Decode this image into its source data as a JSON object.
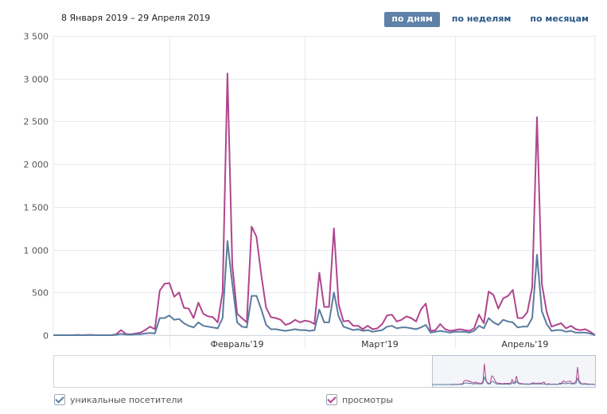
{
  "header": {
    "date_range": "8 Января 2019 – 29 Апреля 2019",
    "periods": [
      {
        "label": "по дням",
        "active": true
      },
      {
        "label": "по неделям",
        "active": false
      },
      {
        "label": "по месяцам",
        "active": false
      }
    ]
  },
  "legend": {
    "unique_label": "уникальные посетители",
    "views_label": "просмотры"
  },
  "colors": {
    "unique": "#5a7b9e",
    "views": "#b0458f",
    "grid": "#e5e9ef"
  },
  "chart_data": {
    "type": "line",
    "x_start": "2019-01-08",
    "x_end": "2019-04-29",
    "ylim": [
      0,
      3500
    ],
    "yticks": [
      {
        "value": 0,
        "label": "0"
      },
      {
        "value": 500,
        "label": "500"
      },
      {
        "value": 1000,
        "label": "1 000"
      },
      {
        "value": 1500,
        "label": "1 500"
      },
      {
        "value": 2000,
        "label": "2 000"
      },
      {
        "value": 2500,
        "label": "2 500"
      },
      {
        "value": 3000,
        "label": "3 000"
      },
      {
        "value": 3500,
        "label": "3 500"
      }
    ],
    "months": [
      {
        "label": "Февраль'19",
        "start_day": 24
      },
      {
        "label": "Март'19",
        "start_day": 52
      },
      {
        "label": "Апрель'19",
        "start_day": 83
      }
    ],
    "series": [
      {
        "name": "просмотры",
        "values": [
          0,
          0,
          0,
          0,
          0,
          2,
          0,
          2,
          3,
          0,
          0,
          0,
          0,
          10,
          60,
          15,
          10,
          20,
          30,
          60,
          100,
          70,
          520,
          600,
          610,
          450,
          500,
          320,
          310,
          200,
          380,
          250,
          220,
          210,
          150,
          500,
          3060,
          820,
          250,
          200,
          150,
          1270,
          1150,
          700,
          320,
          210,
          200,
          180,
          120,
          140,
          180,
          150,
          170,
          160,
          130,
          730,
          330,
          330,
          1250,
          360,
          160,
          170,
          110,
          110,
          70,
          110,
          70,
          80,
          130,
          230,
          240,
          160,
          180,
          220,
          200,
          160,
          300,
          370,
          50,
          60,
          130,
          70,
          50,
          60,
          70,
          60,
          50,
          80,
          240,
          140,
          510,
          470,
          310,
          430,
          460,
          530,
          200,
          200,
          270,
          560,
          2550,
          600,
          270,
          100,
          120,
          140,
          80,
          110,
          70,
          60,
          70,
          40,
          0
        ]
      },
      {
        "name": "уникальные посетители",
        "values": [
          0,
          0,
          0,
          0,
          0,
          1,
          0,
          1,
          2,
          0,
          0,
          0,
          0,
          5,
          15,
          8,
          6,
          10,
          12,
          20,
          25,
          20,
          200,
          200,
          230,
          180,
          190,
          140,
          110,
          90,
          150,
          110,
          100,
          90,
          80,
          200,
          1100,
          600,
          150,
          100,
          90,
          460,
          460,
          300,
          120,
          70,
          70,
          60,
          50,
          60,
          70,
          60,
          60,
          50,
          60,
          300,
          150,
          150,
          500,
          220,
          100,
          80,
          60,
          70,
          50,
          60,
          40,
          50,
          60,
          100,
          110,
          80,
          90,
          90,
          80,
          70,
          90,
          120,
          30,
          40,
          50,
          40,
          30,
          40,
          40,
          40,
          30,
          50,
          110,
          80,
          200,
          150,
          120,
          180,
          160,
          150,
          90,
          100,
          100,
          200,
          940,
          280,
          130,
          50,
          60,
          60,
          40,
          50,
          30,
          30,
          30,
          20,
          0
        ]
      }
    ]
  }
}
